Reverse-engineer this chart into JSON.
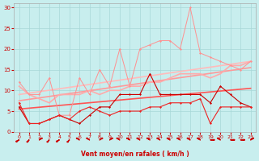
{
  "xlabel": "Vent moyen/en rafales ( km/h )",
  "bg_color": "#c8eeee",
  "grid_color": "#a8d8d8",
  "xlim": [
    -0.5,
    23.5
  ],
  "ylim": [
    0,
    31
  ],
  "yticks": [
    0,
    5,
    10,
    15,
    20,
    25,
    30
  ],
  "xticks": [
    0,
    1,
    2,
    3,
    4,
    5,
    6,
    7,
    8,
    9,
    10,
    11,
    12,
    13,
    14,
    15,
    16,
    17,
    18,
    19,
    20,
    21,
    22,
    23
  ],
  "line_pink_x": [
    0,
    1,
    2,
    3,
    4,
    5,
    6,
    7,
    8,
    9,
    10,
    11,
    12,
    13,
    14,
    15,
    16,
    17,
    18,
    19,
    20,
    21,
    22,
    23
  ],
  "line_pink_y": [
    12,
    9,
    9,
    13,
    4,
    4,
    13,
    9,
    15,
    11,
    20,
    11,
    20,
    21,
    22,
    22,
    20,
    30,
    19,
    18,
    17,
    16,
    15,
    17
  ],
  "line_pink_color": "#ff9090",
  "line_red1_x": [
    0,
    1,
    2,
    3,
    4,
    5,
    6,
    7,
    8,
    9,
    10,
    11,
    12,
    13,
    14,
    15,
    16,
    17,
    18,
    19,
    20,
    21,
    22,
    23
  ],
  "line_red1_y": [
    6,
    2,
    2,
    3,
    4,
    3,
    2,
    4,
    6,
    6,
    9,
    9,
    9,
    14,
    9,
    9,
    9,
    9,
    9,
    7,
    11,
    9,
    7,
    6
  ],
  "line_red1_color": "#cc0000",
  "line_red2_x": [
    0,
    1,
    2,
    3,
    4,
    5,
    6,
    7,
    8,
    9,
    10,
    11,
    12,
    13,
    14,
    15,
    16,
    17,
    18,
    19,
    20,
    21,
    22,
    23
  ],
  "line_red2_y": [
    7,
    2,
    2,
    3,
    4,
    3,
    5,
    6,
    5,
    4,
    5,
    5,
    5,
    6,
    6,
    7,
    7,
    7,
    8,
    2,
    6,
    6,
    6,
    6
  ],
  "line_red2_color": "#ee2222",
  "line_smooth_x": [
    0,
    1,
    2,
    3,
    4,
    5,
    6,
    7,
    8,
    9,
    10,
    11,
    12,
    13,
    14,
    15,
    16,
    17,
    18,
    19,
    20,
    21,
    22,
    23
  ],
  "line_smooth_y": [
    11,
    9,
    8,
    7,
    9,
    9,
    9,
    10,
    9,
    10,
    10,
    11,
    11,
    12,
    12,
    13,
    14,
    14,
    14,
    13,
    14,
    16,
    16,
    17
  ],
  "line_smooth_color": "#ffaaaa",
  "trend1_x": [
    0,
    23
  ],
  "trend1_y": [
    9.0,
    17.0
  ],
  "trend1_color": "#ffbbbb",
  "trend2_x": [
    0,
    23
  ],
  "trend2_y": [
    7.5,
    15.5
  ],
  "trend2_color": "#ff9999",
  "trend3_x": [
    0,
    23
  ],
  "trend3_y": [
    5.5,
    10.5
  ],
  "trend3_color": "#ff5555",
  "arrows_x": [
    0,
    1,
    2,
    3,
    4,
    5,
    6,
    7,
    8,
    9,
    10,
    11,
    12,
    13,
    14,
    15,
    16,
    17,
    18,
    19,
    20,
    21,
    22,
    23
  ],
  "arrow_angles_deg": [
    225,
    210,
    45,
    210,
    225,
    210,
    315,
    315,
    45,
    45,
    315,
    315,
    315,
    315,
    315,
    315,
    315,
    315,
    315,
    90,
    315,
    90,
    90,
    45
  ]
}
